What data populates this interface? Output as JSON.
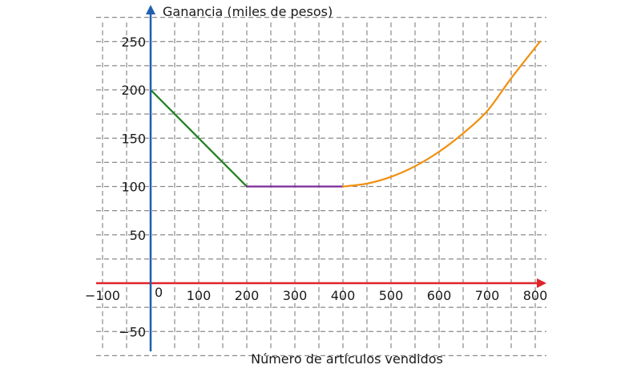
{
  "chart_data": {
    "type": "line",
    "xlabel": "Número de artículos vendidos",
    "ylabel": "Ganancia (miles de pesos)",
    "xlim": [
      -100,
      800
    ],
    "ylim": [
      -50,
      250
    ],
    "grid": true,
    "grid_style": "dashed",
    "x_ticks": [
      -100,
      100,
      200,
      300,
      400,
      500,
      600,
      700,
      800
    ],
    "x_tick_labels": [
      "−100",
      "100",
      "200",
      "300",
      "400",
      "500",
      "600",
      "700",
      "800"
    ],
    "origin_label": "0",
    "y_ticks": [
      250,
      200,
      150,
      100,
      50,
      -50
    ],
    "y_tick_labels": [
      "250",
      "200",
      "150",
      "100",
      "50",
      "−50"
    ],
    "series": [
      {
        "color": "#1a7f1a",
        "points": [
          [
            0,
            200
          ],
          [
            200,
            100
          ]
        ]
      },
      {
        "color": "#7a2a9a",
        "points": [
          [
            200,
            100
          ],
          [
            400,
            100
          ]
        ]
      },
      {
        "color": "#f0900f",
        "points": [
          [
            400,
            100
          ],
          [
            450,
            103
          ],
          [
            500,
            110
          ],
          [
            550,
            121
          ],
          [
            600,
            136
          ],
          [
            650,
            155
          ],
          [
            700,
            178
          ],
          [
            750,
            212
          ],
          [
            810,
            250
          ]
        ]
      }
    ],
    "colors": {
      "x_axis": "#e0242b",
      "y_axis": "#1f5fb0",
      "grid": "#8a8a8a"
    }
  }
}
